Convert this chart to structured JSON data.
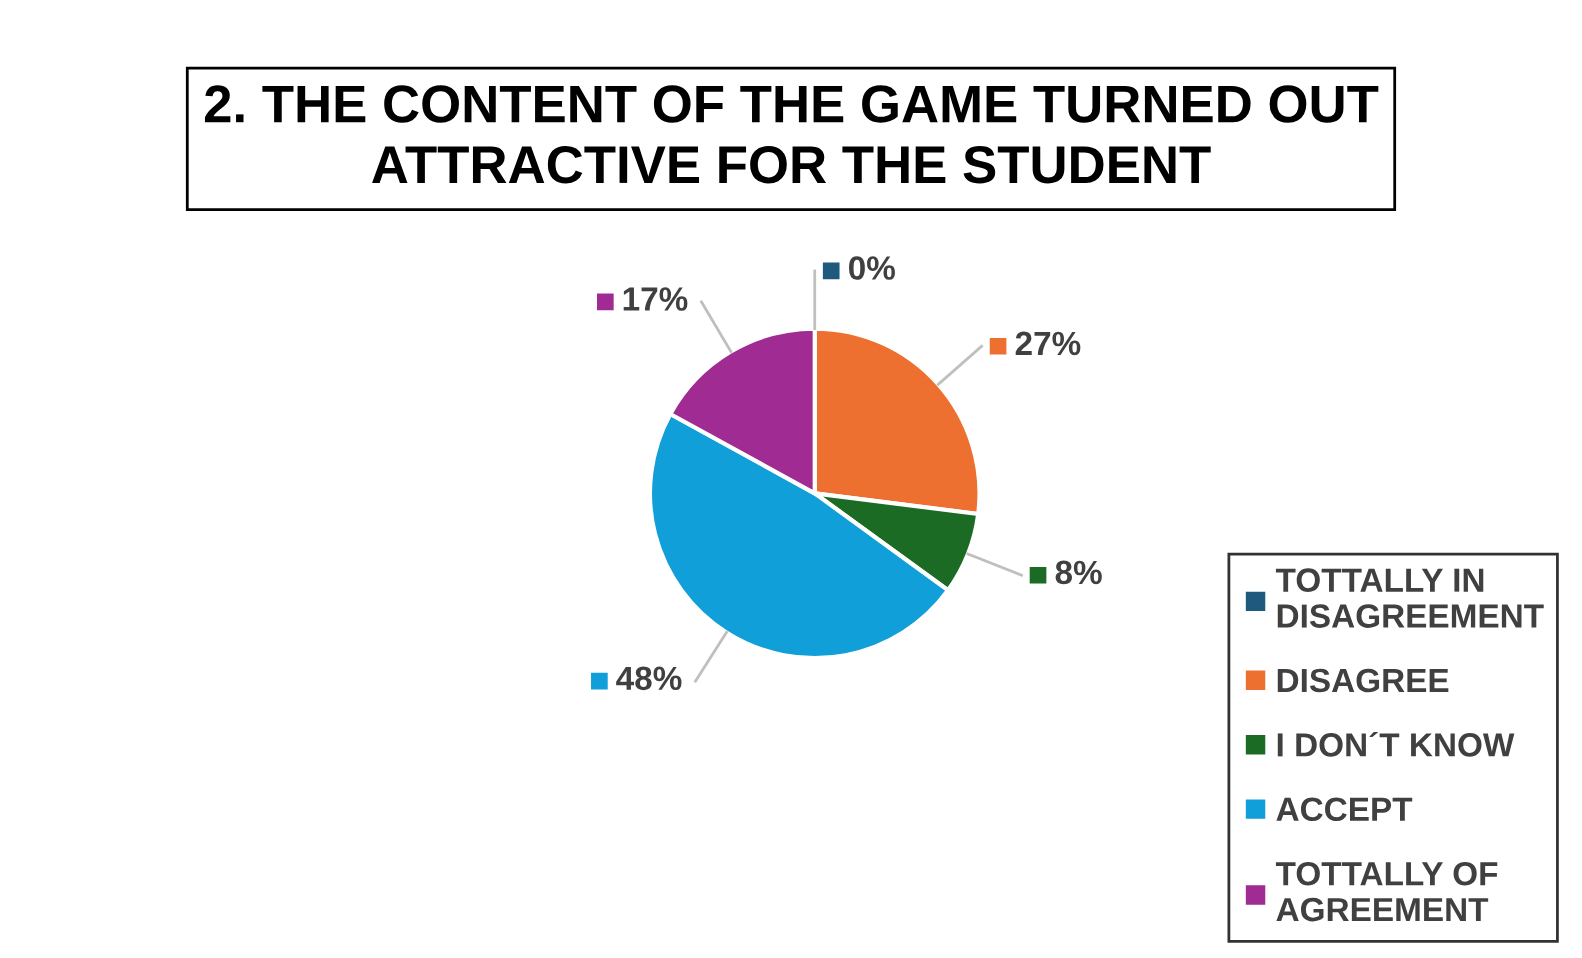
{
  "chart_data": {
    "type": "pie",
    "title": "2. THE CONTENT OF THE GAME TURNED OUT\nATTRACTIVE FOR THE STUDENT",
    "categories": [
      "TOTTALLY IN\nDISAGREEMENT",
      "DISAGREE",
      "I DON´T KNOW",
      "ACCEPT",
      "TOTTALLY OF\nAGREEMENT"
    ],
    "values": [
      0,
      27,
      8,
      48,
      17
    ],
    "colors": [
      "#1f5a7e",
      "#ed7031",
      "#1c6b24",
      "#109fd8",
      "#a02b93"
    ],
    "value_labels": [
      "0%",
      "27%",
      "8%",
      "48%",
      "17%"
    ],
    "legend": "bottom right"
  }
}
